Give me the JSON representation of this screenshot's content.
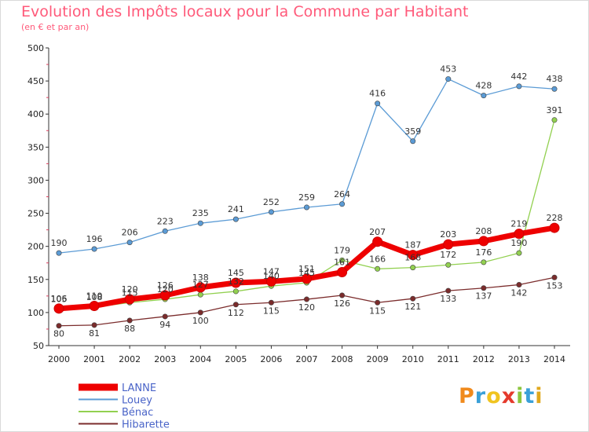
{
  "chart_data": {
    "type": "line",
    "title": "Evolution des Impôts locaux pour la Commune par Habitant",
    "subtitle": "(en € et par an)",
    "xlabel": "",
    "ylabel": "",
    "ylim": [
      50,
      500
    ],
    "yticks": [
      50,
      100,
      150,
      200,
      250,
      300,
      350,
      400,
      450,
      500
    ],
    "categories": [
      "2000",
      "2001",
      "2002",
      "2003",
      "2004",
      "2005",
      "2006",
      "2007",
      "2008",
      "2009",
      "2010",
      "2011",
      "2012",
      "2013",
      "2014"
    ],
    "series": [
      {
        "name": "Louey",
        "color": "#5b9bd5",
        "values": [
          190,
          196,
          206,
          223,
          235,
          241,
          252,
          259,
          264,
          416,
          359,
          453,
          428,
          442,
          438
        ]
      },
      {
        "name": "Bénac",
        "color": "#92d050",
        "values": [
          105,
          108,
          115,
          120,
          127,
          132,
          140,
          145,
          179,
          166,
          168,
          172,
          176,
          190,
          391
        ]
      },
      {
        "name": "Hibarette",
        "color": "#7b2c2c",
        "values": [
          80,
          81,
          88,
          94,
          100,
          112,
          115,
          120,
          126,
          115,
          121,
          133,
          137,
          142,
          153
        ]
      },
      {
        "name": "LANNE",
        "color": "#ee0000",
        "values": [
          106,
          110,
          120,
          126,
          138,
          145,
          147,
          151,
          161,
          207,
          187,
          203,
          208,
          219,
          228
        ]
      }
    ],
    "legend_order": [
      "LANNE",
      "Louey",
      "Bénac",
      "Hibarette"
    ],
    "legend_position": "bottom-left",
    "grid": false
  }
}
